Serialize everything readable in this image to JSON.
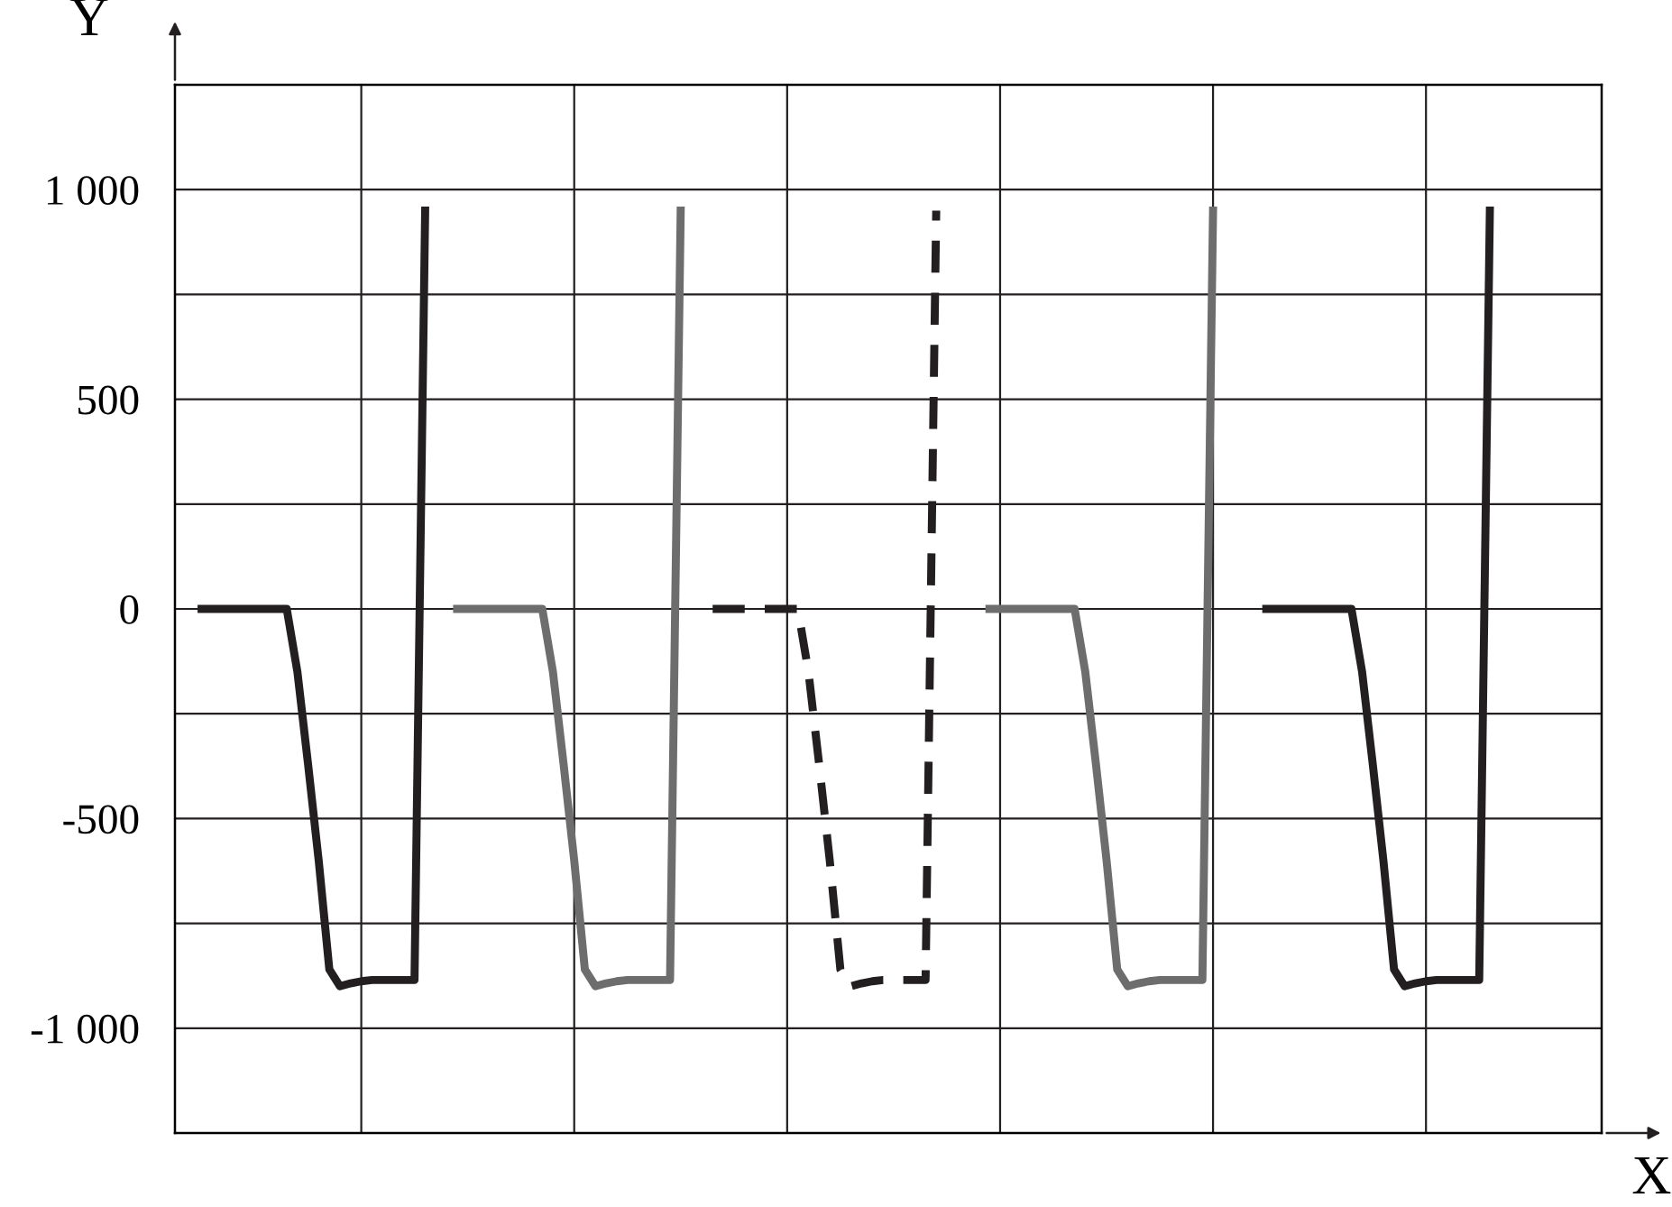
{
  "chart_data": {
    "type": "line",
    "xlabel": "X",
    "ylabel": "Y",
    "categories": [
      null,
      null,
      null,
      null,
      null,
      null,
      null,
      null,
      null,
      null,
      null,
      null,
      null,
      null,
      null,
      null,
      null,
      null,
      null,
      null,
      null,
      null,
      null,
      null,
      null,
      null,
      null,
      null,
      null,
      null,
      null,
      null,
      null,
      null,
      null,
      null,
      null,
      null,
      null,
      null,
      null,
      null,
      null,
      null,
      null,
      null,
      null,
      null,
      null,
      null,
      null,
      null,
      null,
      null,
      null,
      null,
      null,
      null,
      null,
      null,
      null,
      null,
      null,
      null,
      null,
      null,
      null,
      null,
      null,
      null,
      null,
      null,
      null,
      null,
      null,
      null,
      null,
      null,
      null,
      null,
      null,
      null,
      null,
      null,
      null,
      null,
      null,
      null,
      null,
      null,
      null,
      null,
      null,
      null,
      null,
      null,
      null,
      null,
      null,
      null,
      null,
      null,
      null,
      null,
      null,
      null,
      null,
      null,
      null,
      null,
      null,
      null,
      null,
      null,
      null,
      null,
      null,
      null,
      null,
      null,
      null,
      null,
      null,
      null,
      null,
      null,
      null,
      null,
      null,
      null,
      null,
      null,
      null,
      null
    ],
    "ylim": [
      -1250,
      1250
    ],
    "yticks": [
      {
        "value": -1000,
        "label": "-1 000"
      },
      {
        "value": -750,
        "label": null
      },
      {
        "value": -500,
        "label": "-500"
      },
      {
        "value": -250,
        "label": null
      },
      0,
      {
        "value": 250,
        "label": null
      },
      500,
      {
        "value": 750,
        "label": null
      },
      {
        "value": 1000,
        "label": "1 000"
      }
    ],
    "tick_labels": "y",
    "grid": "y",
    "legend": false,
    "marker": "none",
    "series": [
      {
        "color": "#231f20",
        "line_style": "solid",
        "values": [
          null,
          null,
          0,
          0,
          0,
          0,
          0,
          0,
          0,
          0,
          0,
          -150,
          -370,
          -600,
          -860,
          -900,
          -893,
          -888,
          -885,
          -885,
          -885,
          -885,
          -885,
          950,
          null,
          null,
          null,
          null,
          null,
          null,
          null,
          null,
          null,
          null,
          null,
          null,
          null,
          null,
          null,
          null,
          null,
          null,
          null,
          null,
          null,
          null,
          null,
          null,
          null,
          null,
          null,
          null,
          null,
          null,
          null,
          null,
          null,
          null,
          null,
          null,
          null,
          null,
          null,
          null,
          null,
          null,
          null,
          null,
          null,
          null,
          null,
          null,
          null,
          null,
          null,
          null,
          null,
          null,
          null,
          null,
          null,
          null,
          null,
          null,
          null,
          null,
          null,
          null,
          null,
          null,
          null,
          null,
          null,
          null,
          null,
          null,
          null,
          null,
          null,
          null,
          null,
          null,
          null,
          null,
          null,
          null,
          null,
          null,
          null,
          null,
          null,
          null,
          null,
          null,
          null,
          null,
          null,
          null,
          null,
          null,
          null,
          null,
          null,
          null,
          null,
          null,
          null,
          null,
          null,
          null,
          null,
          null,
          null,
          null
        ]
      },
      {
        "color": "#6d6d6d",
        "line_style": "solid",
        "values": [
          null,
          null,
          null,
          null,
          null,
          null,
          null,
          null,
          null,
          null,
          null,
          null,
          null,
          null,
          null,
          null,
          null,
          null,
          null,
          null,
          null,
          null,
          null,
          null,
          null,
          null,
          0,
          0,
          0,
          0,
          0,
          0,
          0,
          0,
          0,
          -150,
          -370,
          -600,
          -860,
          -900,
          -893,
          -888,
          -885,
          -885,
          -885,
          -885,
          -885,
          950,
          null,
          null,
          null,
          null,
          null,
          null,
          null,
          null,
          null,
          null,
          null,
          null,
          null,
          null,
          null,
          null,
          null,
          null,
          null,
          null,
          null,
          null,
          null,
          null,
          null,
          null,
          null,
          null,
          null,
          null,
          null,
          null,
          null,
          null,
          null,
          null,
          null,
          null,
          null,
          null,
          null,
          null,
          null,
          null,
          null,
          null,
          null,
          null,
          null,
          null,
          null,
          null,
          null,
          null,
          null,
          null,
          null,
          null,
          null,
          null,
          null,
          null,
          null,
          null,
          null,
          null,
          null,
          null,
          null,
          null,
          null,
          null,
          null,
          null,
          null,
          null,
          null,
          null,
          null,
          null,
          null,
          null,
          null,
          null,
          null,
          null
        ]
      },
      {
        "color": "#231f20",
        "line_style": "dashed",
        "values": [
          null,
          null,
          null,
          null,
          null,
          null,
          null,
          null,
          null,
          null,
          null,
          null,
          null,
          null,
          null,
          null,
          null,
          null,
          null,
          null,
          null,
          null,
          null,
          null,
          null,
          null,
          null,
          null,
          null,
          null,
          null,
          null,
          null,
          null,
          null,
          null,
          null,
          null,
          null,
          null,
          null,
          null,
          null,
          null,
          null,
          null,
          null,
          null,
          null,
          null,
          0,
          0,
          0,
          0,
          0,
          0,
          0,
          0,
          0,
          -150,
          -370,
          -600,
          -860,
          -900,
          -893,
          -888,
          -885,
          -885,
          -885,
          -885,
          -885,
          950,
          null,
          null,
          null,
          null,
          null,
          null,
          null,
          null,
          null,
          null,
          null,
          null,
          null,
          null,
          null,
          null,
          null,
          null,
          null,
          null,
          null,
          null,
          null,
          null,
          null,
          null,
          null,
          null,
          null,
          null,
          null,
          null,
          null,
          null,
          null,
          null,
          null,
          null,
          null,
          null,
          null,
          null,
          null,
          null,
          null,
          null,
          null,
          null,
          null,
          null,
          null,
          null,
          null,
          null,
          null,
          null,
          null,
          null,
          null,
          null,
          null,
          null
        ]
      },
      {
        "color": "#6d6d6d",
        "line_style": "solid",
        "values": [
          null,
          null,
          null,
          null,
          null,
          null,
          null,
          null,
          null,
          null,
          null,
          null,
          null,
          null,
          null,
          null,
          null,
          null,
          null,
          null,
          null,
          null,
          null,
          null,
          null,
          null,
          null,
          null,
          null,
          null,
          null,
          null,
          null,
          null,
          null,
          null,
          null,
          null,
          null,
          null,
          null,
          null,
          null,
          null,
          null,
          null,
          null,
          null,
          null,
          null,
          null,
          null,
          null,
          null,
          null,
          null,
          null,
          null,
          null,
          null,
          null,
          null,
          null,
          null,
          null,
          null,
          null,
          null,
          null,
          null,
          null,
          null,
          null,
          null,
          null,
          null,
          0,
          0,
          0,
          0,
          0,
          0,
          0,
          0,
          0,
          -150,
          -370,
          -600,
          -860,
          -900,
          -893,
          -888,
          -885,
          -885,
          -885,
          -885,
          -885,
          950,
          null,
          null,
          null,
          null,
          null,
          null,
          null,
          null,
          null,
          null,
          null,
          null,
          null,
          null,
          null,
          null,
          null,
          null,
          null,
          null,
          null,
          null,
          null,
          null,
          null,
          null,
          null,
          null,
          null,
          null,
          null,
          null,
          null,
          null,
          null,
          null
        ]
      },
      {
        "color": "#231f20",
        "line_style": "solid",
        "values": [
          null,
          null,
          null,
          null,
          null,
          null,
          null,
          null,
          null,
          null,
          null,
          null,
          null,
          null,
          null,
          null,
          null,
          null,
          null,
          null,
          null,
          null,
          null,
          null,
          null,
          null,
          null,
          null,
          null,
          null,
          null,
          null,
          null,
          null,
          null,
          null,
          null,
          null,
          null,
          null,
          null,
          null,
          null,
          null,
          null,
          null,
          null,
          null,
          null,
          null,
          null,
          null,
          null,
          null,
          null,
          null,
          null,
          null,
          null,
          null,
          null,
          null,
          null,
          null,
          null,
          null,
          null,
          null,
          null,
          null,
          null,
          null,
          null,
          null,
          null,
          null,
          null,
          null,
          null,
          null,
          null,
          null,
          null,
          null,
          null,
          null,
          null,
          null,
          null,
          null,
          null,
          null,
          null,
          null,
          null,
          null,
          null,
          null,
          null,
          null,
          null,
          null,
          0,
          0,
          0,
          0,
          0,
          0,
          0,
          0,
          0,
          -150,
          -370,
          -600,
          -860,
          -900,
          -893,
          -888,
          -885,
          -885,
          -885,
          -885,
          -885,
          950,
          null,
          null,
          null,
          null,
          null,
          null,
          null,
          null,
          null,
          null
        ]
      }
    ]
  }
}
